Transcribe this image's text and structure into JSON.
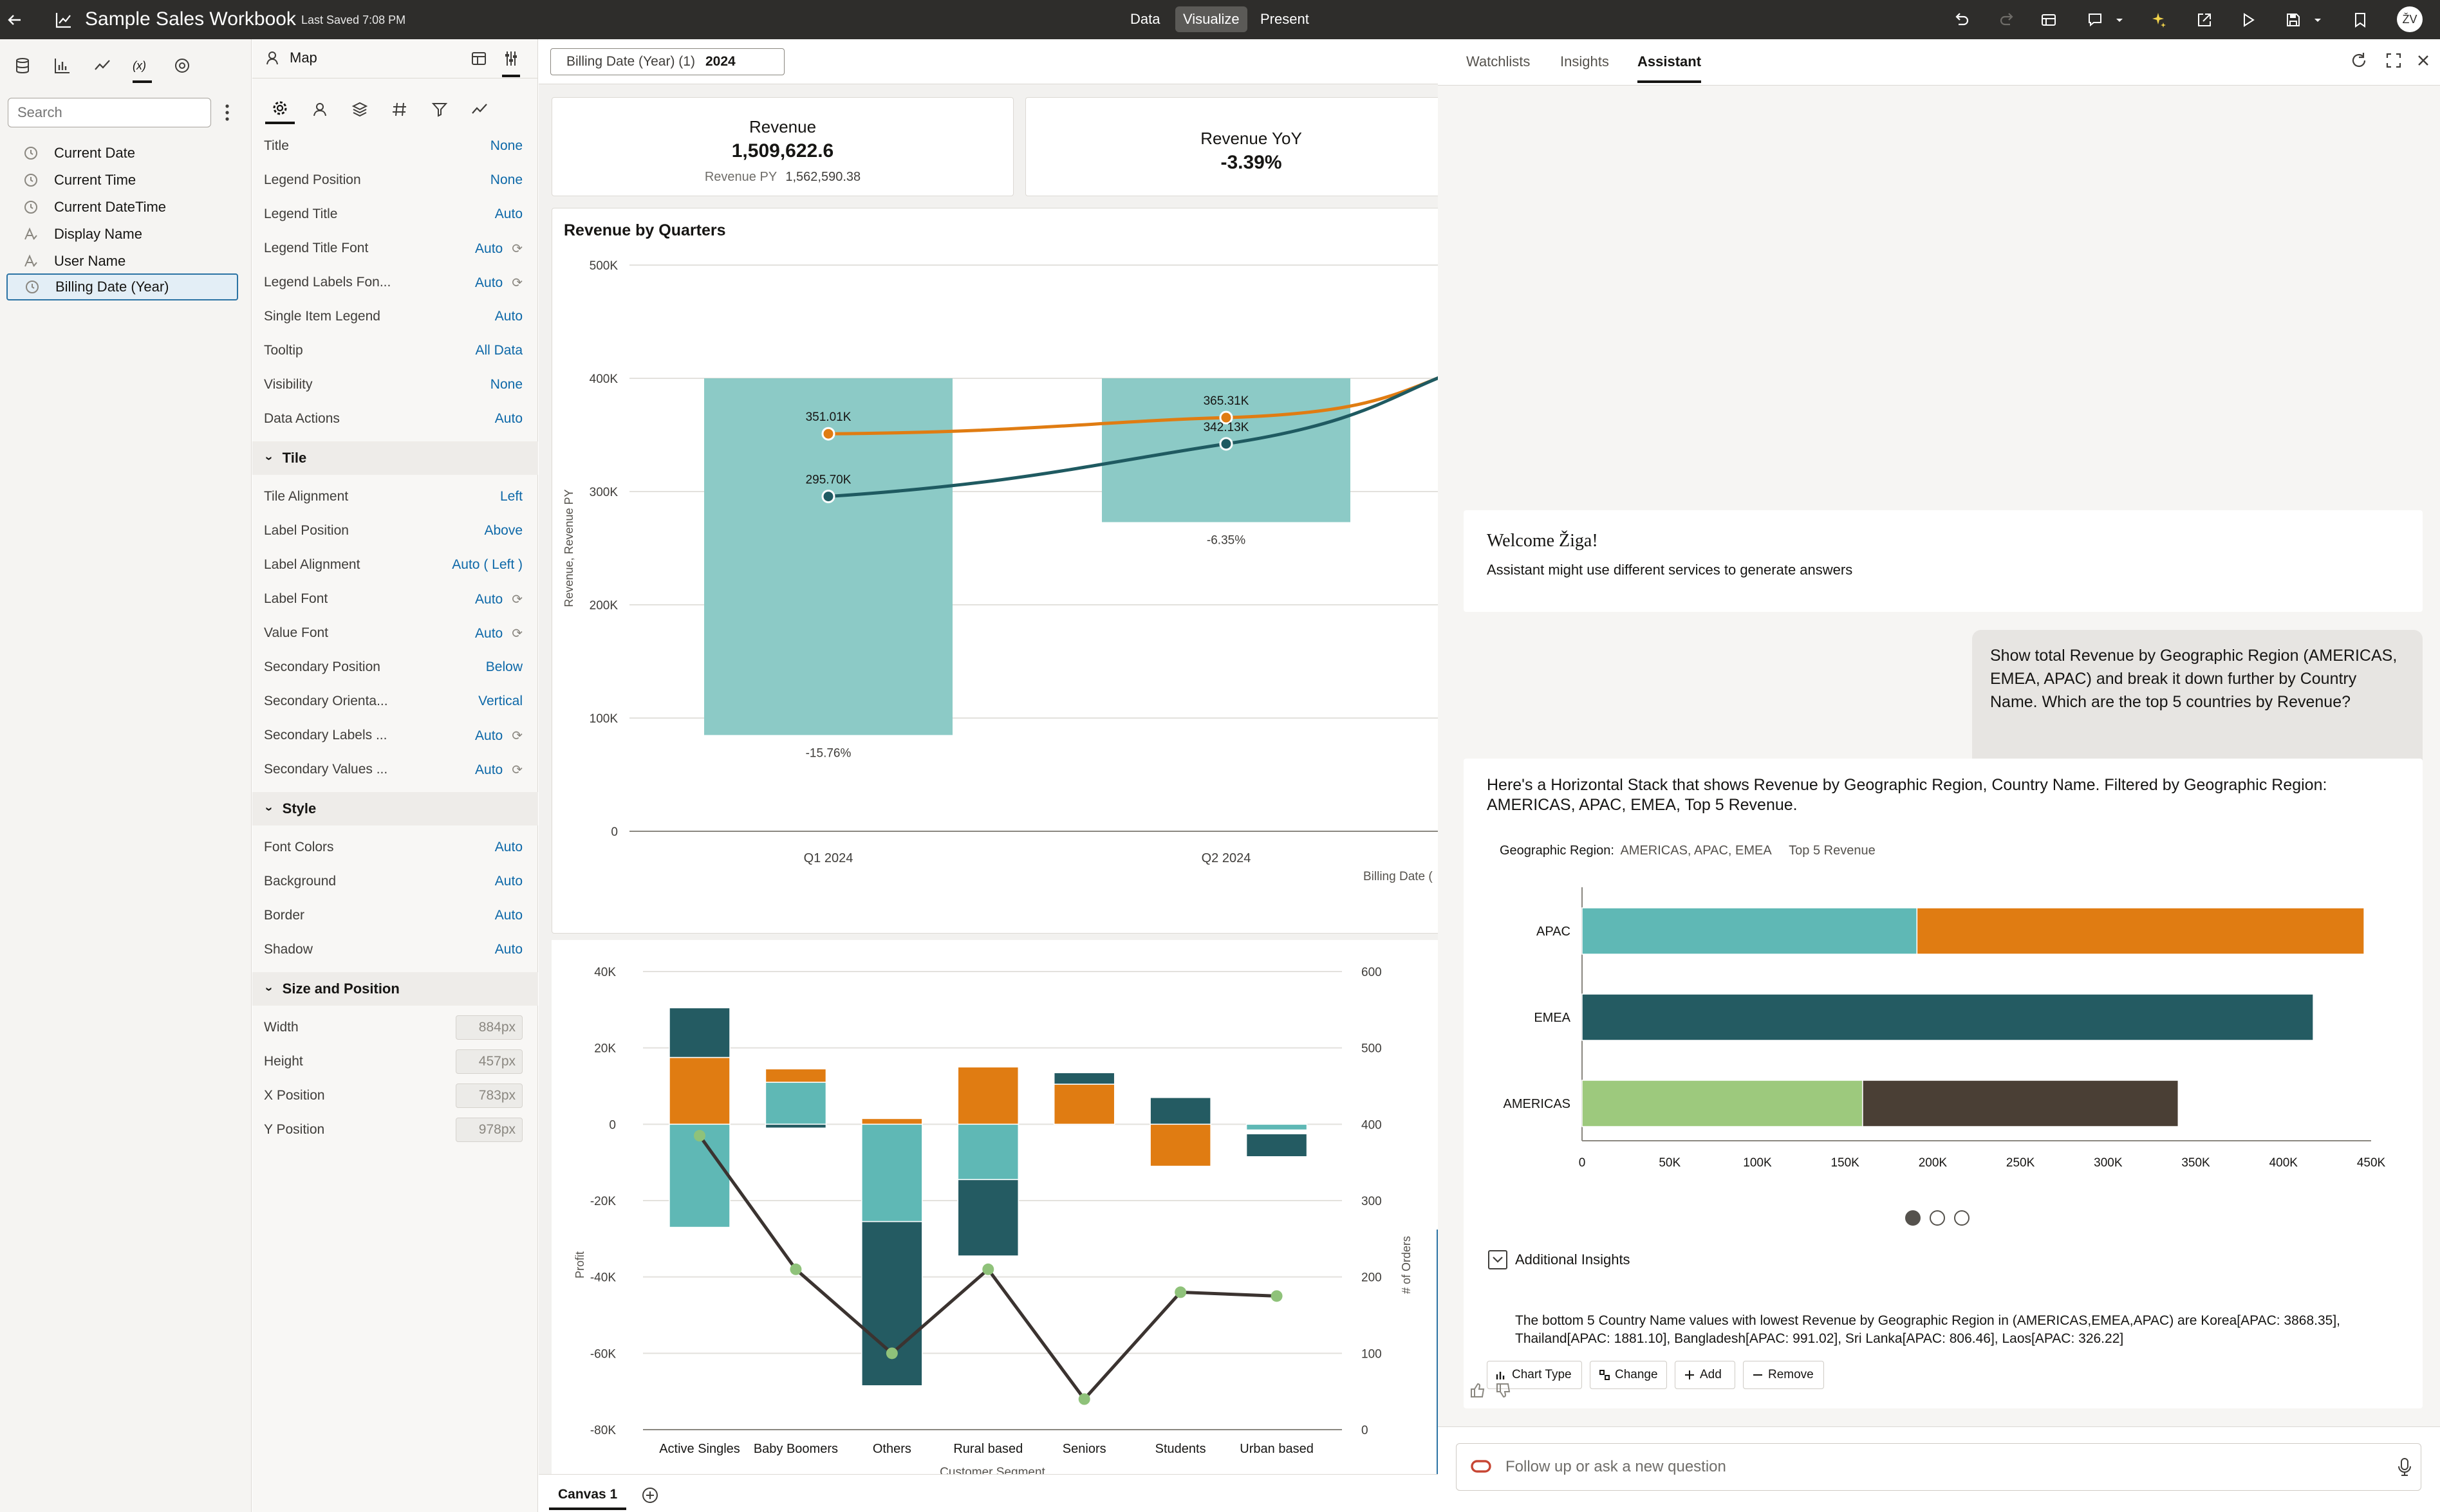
{
  "app": {
    "title": "Sample Sales Workbook",
    "last_saved": "Last Saved 7:08 PM",
    "modes": [
      "Data",
      "Visualize",
      "Present"
    ],
    "active_mode": "Visualize",
    "avatar_initials": "ŽV"
  },
  "left_pane": {
    "search_placeholder": "Search",
    "items": [
      {
        "label": "Current Date",
        "icon": "clock-icon"
      },
      {
        "label": "Current Time",
        "icon": "clock-icon"
      },
      {
        "label": "Current DateTime",
        "icon": "clock-icon"
      },
      {
        "label": "Display Name",
        "icon": "text-attribute-icon"
      },
      {
        "label": "User Name",
        "icon": "text-attribute-icon"
      },
      {
        "label": "Billing Date (Year)",
        "icon": "clock-icon",
        "selected": true
      }
    ]
  },
  "properties": {
    "viz_type": "Map",
    "general": [
      {
        "label": "Title",
        "value": "None"
      },
      {
        "label": "Legend Position",
        "value": "None"
      },
      {
        "label": "Legend Title",
        "value": "Auto"
      },
      {
        "label": "Legend Title Font",
        "value": "Auto",
        "reset": true
      },
      {
        "label": "Legend Labels Fon...",
        "value": "Auto",
        "reset": true
      },
      {
        "label": "Single Item Legend",
        "value": "Auto"
      },
      {
        "label": "Tooltip",
        "value": "All Data"
      },
      {
        "label": "Visibility",
        "value": "None"
      },
      {
        "label": "Data Actions",
        "value": "Auto"
      }
    ],
    "tile_section": "Tile",
    "tile": [
      {
        "label": "Tile Alignment",
        "value": "Left"
      },
      {
        "label": "Label Position",
        "value": "Above"
      },
      {
        "label": "Label Alignment",
        "value": "Auto ( Left )"
      },
      {
        "label": "Label Font",
        "value": "Auto",
        "reset": true
      },
      {
        "label": "Value Font",
        "value": "Auto",
        "reset": true
      },
      {
        "label": "Secondary Position",
        "value": "Below"
      },
      {
        "label": "Secondary Orienta...",
        "value": "Vertical"
      },
      {
        "label": "Secondary Labels ...",
        "value": "Auto",
        "reset": true
      },
      {
        "label": "Secondary Values ...",
        "value": "Auto",
        "reset": true
      }
    ],
    "style_section": "Style",
    "style": [
      {
        "label": "Font Colors",
        "value": "Auto"
      },
      {
        "label": "Background",
        "value": "Auto"
      },
      {
        "label": "Border",
        "value": "Auto"
      },
      {
        "label": "Shadow",
        "value": "Auto"
      }
    ],
    "size_section": "Size and Position",
    "size": [
      {
        "label": "Width",
        "value": "884px"
      },
      {
        "label": "Height",
        "value": "457px"
      },
      {
        "label": "X Position",
        "value": "783px"
      },
      {
        "label": "Y Position",
        "value": "978px"
      }
    ]
  },
  "canvas": {
    "filter_label": "Billing Date (Year) (1)",
    "filter_value": "2024",
    "tile1": {
      "label": "Revenue",
      "value": "1,509,622.6",
      "secondary_label": "Revenue PY",
      "secondary_value": "1,562,590.38"
    },
    "tile2": {
      "label": "Revenue YoY",
      "value": "-3.39%"
    },
    "canvas_tab": "Canvas 1"
  },
  "chart_data": [
    {
      "type": "bar",
      "title": "Revenue by Quarters",
      "ylabel": "Revenue, Revenue PY",
      "xlabel": "Billing Date (",
      "ylim": [
        0,
        500000
      ],
      "yticks": [
        "0",
        "100K",
        "200K",
        "300K",
        "400K",
        "500K"
      ],
      "categories": [
        "Q1 2024",
        "Q2 2024"
      ],
      "bars": [
        {
          "category": "Q1 2024",
          "from": 85000,
          "to": 400000,
          "label": "-15.76%"
        },
        {
          "category": "Q2 2024",
          "from": 273000,
          "to": 400000,
          "label": "-6.35%"
        }
      ],
      "series": [
        {
          "values": [
            351010,
            365310
          ],
          "labels": [
            "351.01K",
            "365.31K"
          ],
          "color": "#e07c12"
        },
        {
          "values": [
            295700,
            342130
          ],
          "labels": [
            "295.70K",
            "342.13K"
          ],
          "color": "#1f5a61"
        }
      ]
    },
    {
      "type": "bar",
      "stacked": true,
      "ylabel": "Profit",
      "y2label": "# of Orders",
      "xlabel": "Customer Segment",
      "ylim": [
        -80000,
        40000
      ],
      "y2lim": [
        0,
        600
      ],
      "yticks": [
        "-80K",
        "-60K",
        "-40K",
        "-20K",
        "0",
        "20K",
        "40K"
      ],
      "y2ticks": [
        "0",
        "100",
        "200",
        "300",
        "400",
        "500",
        "600"
      ],
      "categories": [
        "Active Singles",
        "Baby Boomers",
        "Others",
        "Rural based",
        "Seniors",
        "Students",
        "Urban based"
      ],
      "stacks": [
        [
          {
            "from": 0,
            "to": 17500,
            "color": "#e07c12"
          },
          {
            "from": 17500,
            "to": 30500,
            "color": "#245b62"
          },
          {
            "from": 0,
            "to": -27000,
            "color": "#5fb8b5"
          }
        ],
        [
          {
            "from": 0,
            "to": 11000,
            "color": "#5fb8b5"
          },
          {
            "from": 11000,
            "to": 14500,
            "color": "#e07c12"
          },
          {
            "from": 0,
            "to": -1000,
            "color": "#245b62"
          }
        ],
        [
          {
            "from": 0,
            "to": 1500,
            "color": "#e07c12"
          },
          {
            "from": 0,
            "to": -25500,
            "color": "#5fb8b5"
          },
          {
            "from": -25500,
            "to": -68500,
            "color": "#245b62"
          }
        ],
        [
          {
            "from": 0,
            "to": 15000,
            "color": "#e07c12"
          },
          {
            "from": 0,
            "to": -14500,
            "color": "#5fb8b5"
          },
          {
            "from": -14500,
            "to": -34500,
            "color": "#245b62"
          }
        ],
        [
          {
            "from": 0,
            "to": 10500,
            "color": "#e07c12"
          },
          {
            "from": 10500,
            "to": 13500,
            "color": "#245b62"
          }
        ],
        [
          {
            "from": 0,
            "to": 0,
            "color": "#245b62"
          },
          {
            "from": 0,
            "to": 7000,
            "color": "#245b62"
          },
          {
            "from": 0,
            "to": -11000,
            "color": "#e07c12"
          }
        ],
        [
          {
            "from": 0,
            "to": -1500,
            "color": "#5fb8b5"
          },
          {
            "from": -2500,
            "to": -8500,
            "color": "#245b62"
          }
        ]
      ],
      "line": {
        "values": [
          385,
          210,
          100,
          210,
          40,
          180,
          175
        ],
        "color": "#3b3330"
      }
    },
    {
      "type": "bar",
      "orientation": "horizontal",
      "stacked": true,
      "title": "Geographic Region:",
      "filter_text": "AMERICAS, APAC, EMEA",
      "filter_text2": "Top 5 Revenue",
      "xlim": [
        0,
        450000
      ],
      "xticks": [
        "0",
        "50K",
        "100K",
        "150K",
        "200K",
        "250K",
        "300K",
        "350K",
        "400K",
        "450K"
      ],
      "categories": [
        "APAC",
        "EMEA",
        "AMERICAS"
      ],
      "segments": [
        [
          {
            "value": 191000,
            "color": "#5fb8b5"
          },
          {
            "value": 255000,
            "color": "#e07c12"
          }
        ],
        [
          {
            "value": 417000,
            "color": "#245b62"
          }
        ],
        [
          {
            "value": 160000,
            "color": "#9dc97d"
          },
          {
            "value": 180000,
            "color": "#4a3f35"
          }
        ]
      ]
    }
  ],
  "assistant": {
    "tabs": [
      "Watchlists",
      "Insights",
      "Assistant"
    ],
    "active_tab": "Assistant",
    "welcome_title": "Welcome Žiga!",
    "welcome_text": "Assistant might use different services to generate answers",
    "user_question": "Show total Revenue by Geographic Region (AMERICAS, EMEA, APAC) and break it down further by Country Name. Which are the top 5 countries by Revenue?",
    "answer_text": "Here's a Horizontal Stack that shows Revenue by Geographic Region, Country Name. Filtered by Geographic Region: AMERICAS, APAC, EMEA, Top 5 Revenue.",
    "additional_insights_label": "Additional Insights",
    "insight_text": "The bottom 5 Country Name values with lowest Revenue by Geographic Region in (AMERICAS,EMEA,APAC) are Korea[APAC: 3868.35], Thailand[APAC: 1881.10], Bangladesh[APAC: 991.02], Sri Lanka[APAC: 806.46], Laos[APAC: 326.22]",
    "buttons": [
      "Chart Type",
      "Change",
      "Add",
      "Remove"
    ],
    "input_placeholder": "Follow up or ask a new question"
  }
}
